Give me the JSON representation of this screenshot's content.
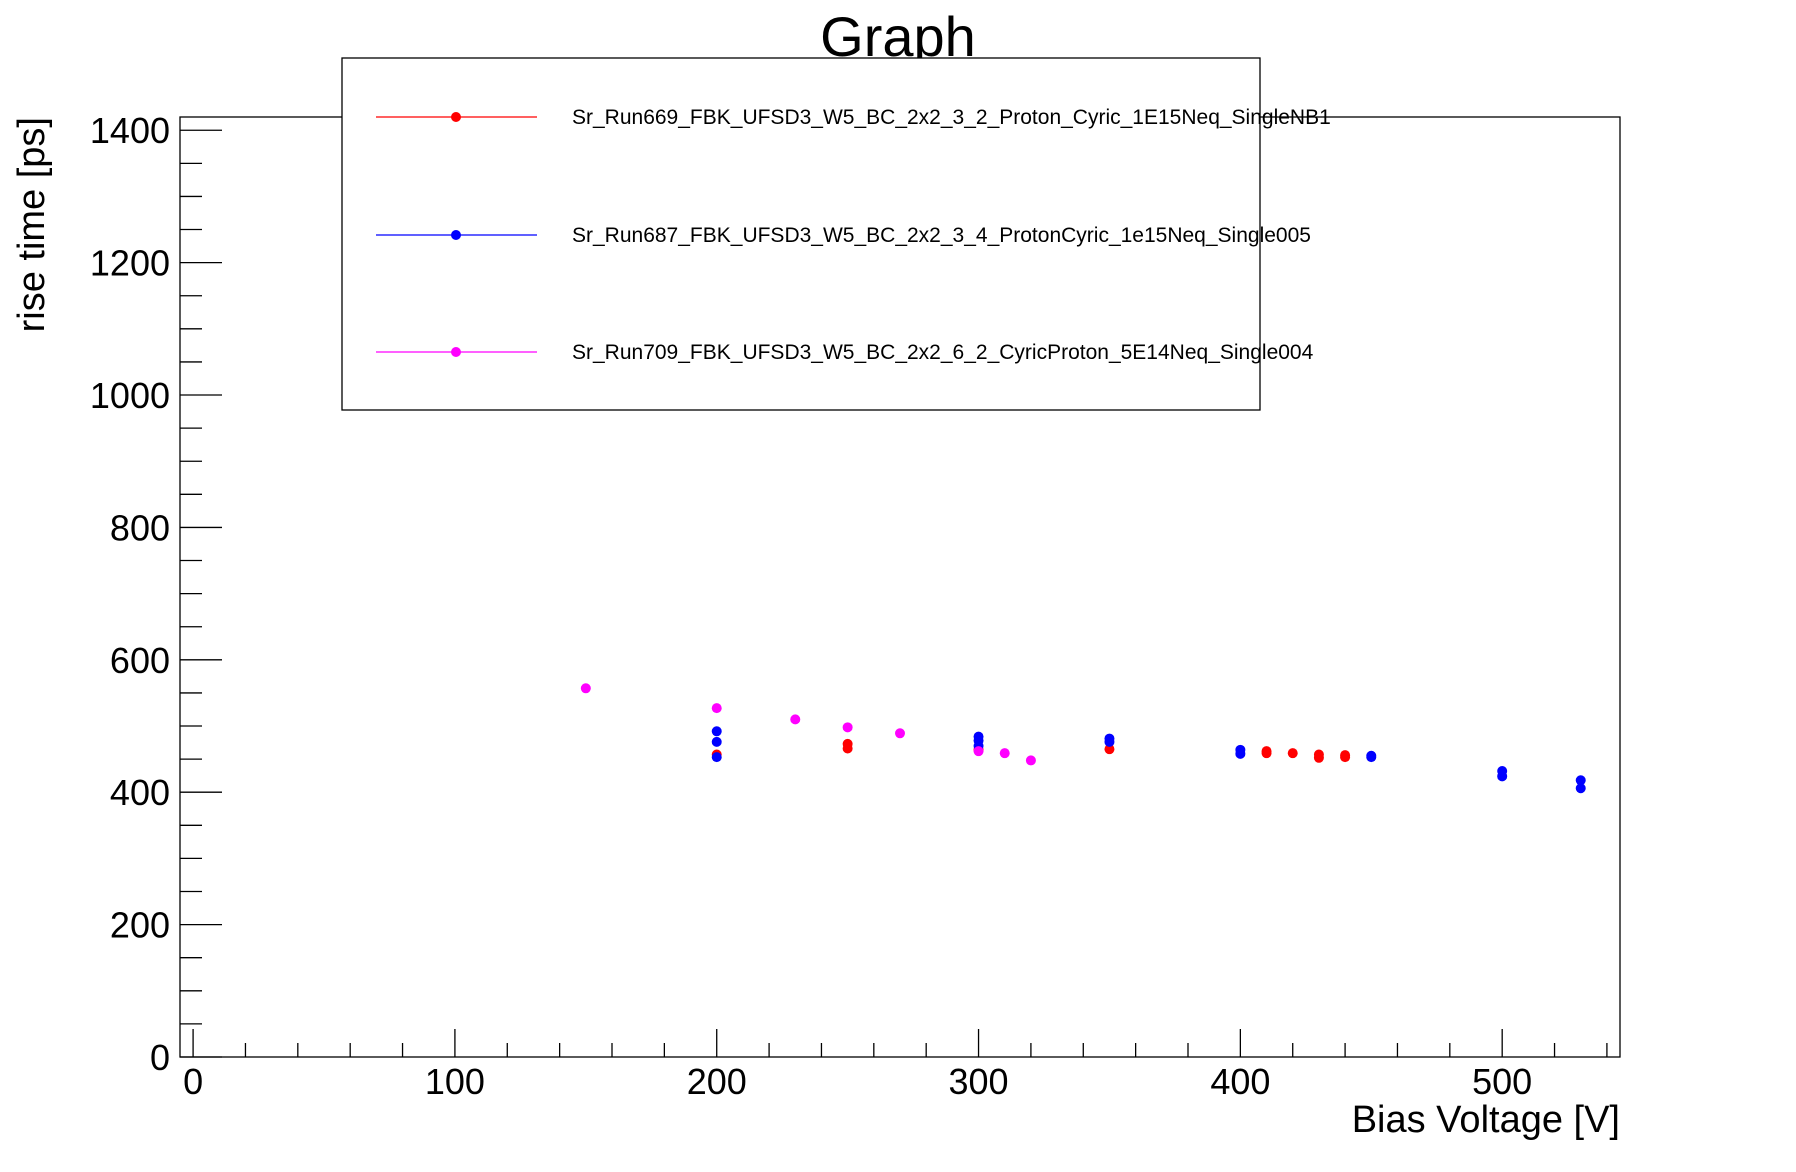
{
  "chart_data": {
    "type": "scatter",
    "title": "Graph",
    "xlabel": "Bias Voltage [V]",
    "ylabel": "rise time [ps]",
    "xlim": [
      -5,
      545
    ],
    "ylim": [
      0,
      1420
    ],
    "x_ticks": [
      0,
      100,
      200,
      300,
      400,
      500
    ],
    "y_ticks": [
      0,
      200,
      400,
      600,
      800,
      1000,
      1200,
      1400
    ],
    "grid": false,
    "legend_position": "top-center",
    "series": [
      {
        "name": "Sr_Run669_FBK_UFSD3_W5_BC_2x2_3_2_Proton_Cyric_1E15Neq_SingleNB1",
        "color": "#ff0000",
        "points": [
          [
            200,
            457
          ],
          [
            250,
            473
          ],
          [
            250,
            466
          ],
          [
            300,
            464
          ],
          [
            350,
            465
          ],
          [
            410,
            462
          ],
          [
            410,
            459
          ],
          [
            420,
            459
          ],
          [
            430,
            457
          ],
          [
            430,
            452
          ],
          [
            440,
            456
          ],
          [
            440,
            453
          ]
        ]
      },
      {
        "name": "Sr_Run687_FBK_UFSD3_W5_BC_2x2_3_4_ProtonCyric_1e15Neq_Single005",
        "color": "#0000ff",
        "points": [
          [
            200,
            492
          ],
          [
            200,
            476
          ],
          [
            200,
            453
          ],
          [
            300,
            484
          ],
          [
            300,
            478
          ],
          [
            300,
            470
          ],
          [
            350,
            481
          ],
          [
            350,
            476
          ],
          [
            400,
            464
          ],
          [
            400,
            458
          ],
          [
            450,
            455
          ],
          [
            450,
            453
          ],
          [
            500,
            432
          ],
          [
            500,
            424
          ],
          [
            530,
            418
          ],
          [
            530,
            406
          ]
        ]
      },
      {
        "name": "Sr_Run709_FBK_UFSD3_W5_BC_2x2_6_2_CyricProton_5E14Neq_Single004",
        "color": "#ff00ff",
        "points": [
          [
            150,
            557
          ],
          [
            200,
            527
          ],
          [
            230,
            510
          ],
          [
            250,
            498
          ],
          [
            270,
            489
          ],
          [
            300,
            462
          ],
          [
            310,
            459
          ],
          [
            320,
            448
          ]
        ]
      }
    ]
  }
}
